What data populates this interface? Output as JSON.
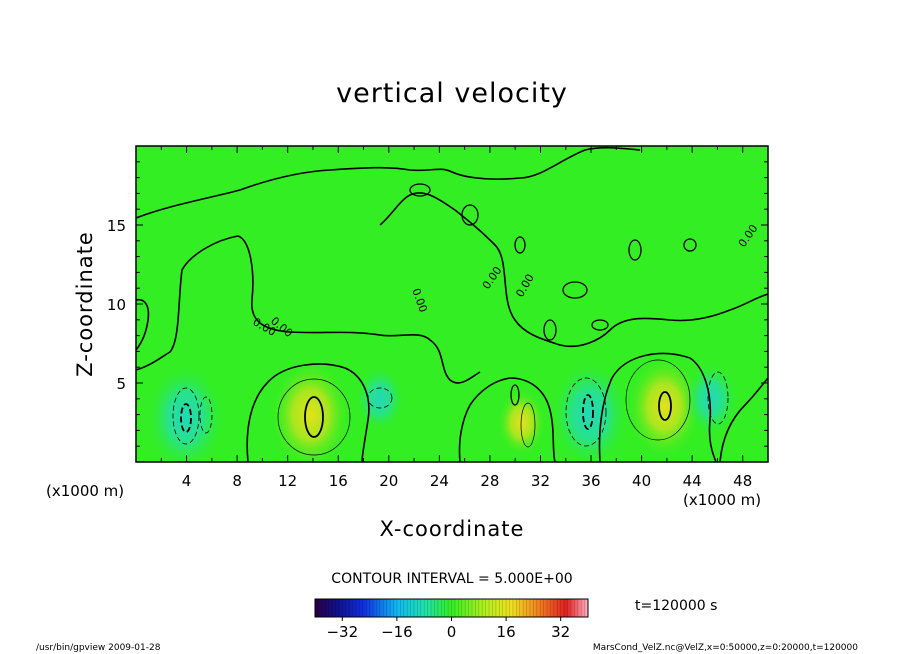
{
  "chart_data": {
    "type": "heatmap",
    "title": "vertical velocity",
    "xlabel": "X-coordinate",
    "ylabel": "Z-coordinate",
    "x_unit_left": "(x1000 m)",
    "x_unit_right": "(x1000 m)",
    "xlim": [
      0,
      50
    ],
    "ylim": [
      0,
      20
    ],
    "x_ticks": [
      4,
      8,
      12,
      16,
      20,
      24,
      28,
      32,
      36,
      40,
      44,
      48
    ],
    "y_ticks": [
      5,
      10,
      15
    ],
    "contour_interval_text": "CONTOUR INTERVAL = 5.000E+00",
    "time_text": "t=120000 s",
    "colorbar": {
      "ticks": [
        -32,
        -16,
        0,
        16,
        32
      ],
      "range": [
        -40,
        40
      ]
    },
    "contour_label": "0.00",
    "features": [
      {
        "kind": "updraft",
        "x": 13.8,
        "z": 3.0,
        "peak": 12
      },
      {
        "kind": "updraft",
        "x": 41.8,
        "z": 3.5,
        "peak": 11
      },
      {
        "kind": "downdraft",
        "x": 3.9,
        "z": 2.8,
        "peak": -12
      },
      {
        "kind": "downdraft",
        "x": 35.9,
        "z": 3.0,
        "peak": -12
      },
      {
        "kind": "downdraft",
        "x": 45.5,
        "z": 4.0,
        "peak": -7
      },
      {
        "kind": "downdraft",
        "x": 19.3,
        "z": 4.0,
        "peak": -6
      },
      {
        "kind": "updraft",
        "x": 30.5,
        "z": 2.5,
        "peak": 6
      }
    ],
    "grid": false
  },
  "footer": {
    "left": "/usr/bin/gpview   2009-01-28",
    "right": "MarsCond_VelZ.nc@VelZ,x=0:50000,z=0:20000,t=120000"
  },
  "colors": {
    "background_field": "#33ee22",
    "updraft_core": "#d8ee22",
    "downdraft_core": "#22ddaa"
  }
}
